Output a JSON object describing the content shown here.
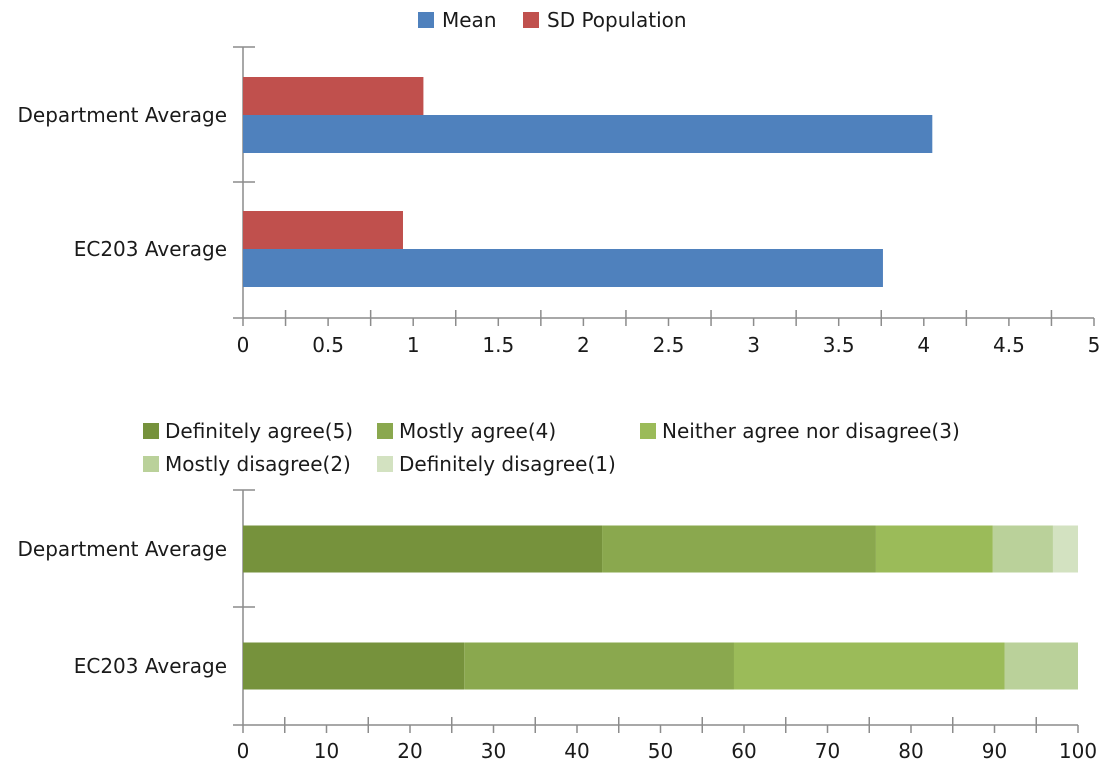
{
  "chart_data": [
    {
      "type": "bar",
      "orientation": "horizontal",
      "title": "",
      "xlabel": "",
      "ylabel": "",
      "categories": [
        "Department Average",
        "EC203 Average"
      ],
      "series": [
        {
          "name": "Mean",
          "values": [
            4.05,
            3.76
          ],
          "color": "#4f81bd"
        },
        {
          "name": "SD Population",
          "values": [
            1.06,
            0.94
          ],
          "color": "#c0504d"
        }
      ],
      "xlim": [
        0,
        5
      ],
      "xticks": [
        0,
        0.5,
        1,
        1.5,
        2,
        2.5,
        3,
        3.5,
        4,
        4.5,
        5
      ],
      "legend": "top",
      "grid": false
    },
    {
      "type": "bar",
      "orientation": "horizontal",
      "stacked": true,
      "title": "",
      "xlabel": "",
      "ylabel": "",
      "categories": [
        "Department Average",
        "EC203 Average"
      ],
      "series": [
        {
          "name": "Definitely agree(5)",
          "values": [
            43,
            26.5
          ],
          "color": "#76923c"
        },
        {
          "name": "Mostly agree(4)",
          "values": [
            32.8,
            32.3
          ],
          "color": "#8aa84e"
        },
        {
          "name": "Neither agree nor disagree(3)",
          "values": [
            14,
            32.4
          ],
          "color": "#9bbb59"
        },
        {
          "name": "Mostly disagree(2)",
          "values": [
            7.2,
            8.8
          ],
          "color": "#bad19a"
        },
        {
          "name": "Definitely disagree(1)",
          "values": [
            3,
            0
          ],
          "color": "#d3e2c1"
        }
      ],
      "xlim": [
        0,
        100
      ],
      "xticks": [
        0,
        10,
        20,
        30,
        40,
        50,
        60,
        70,
        80,
        90,
        100
      ],
      "legend": "top",
      "grid": false
    }
  ]
}
